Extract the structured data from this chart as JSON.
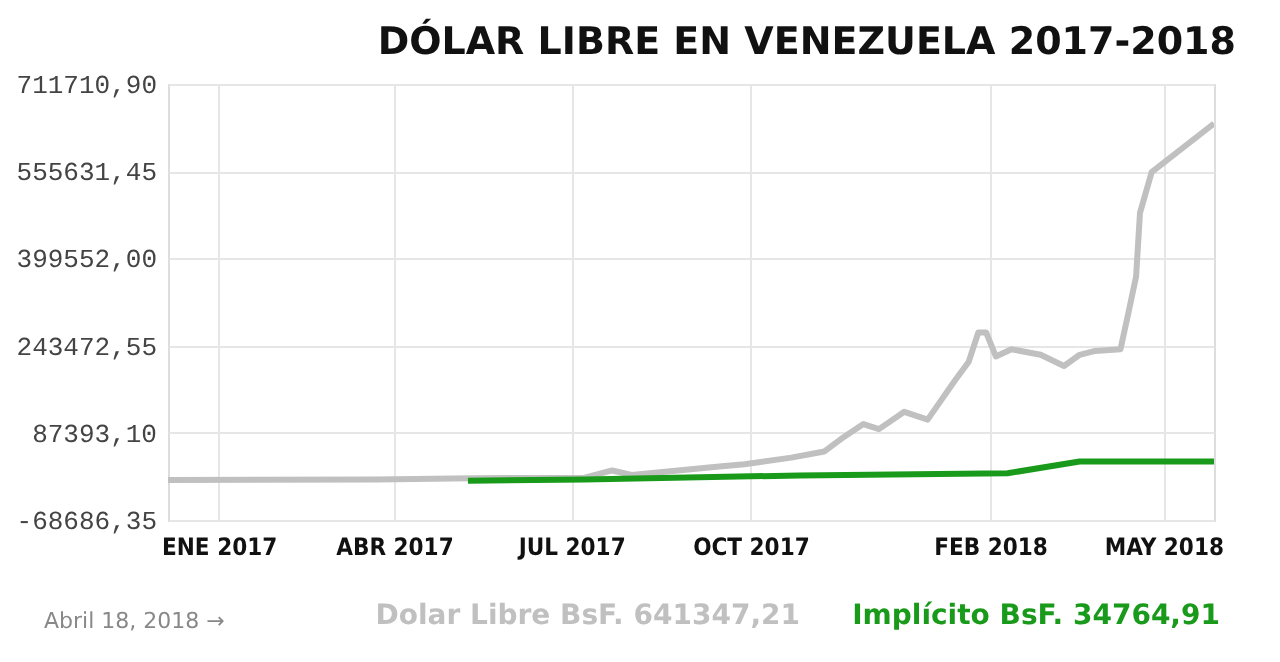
{
  "chart_data": {
    "type": "line",
    "title": "DÓLAR LIBRE EN VENEZUELA 2017-2018",
    "annotations": [
      "Abril 18, 2018 →",
      "Dolar Libre BsF. 641347,21",
      "Implícito BsF. 34764,91"
    ],
    "series": [
      {
        "color": "#c0c0c0",
        "x": [
          "2016-12-06",
          "2017-03-23",
          "2017-05-11",
          "2017-07-08",
          "2017-07-22",
          "2017-08-01",
          "2017-09-15",
          "2017-09-28",
          "2017-10-22",
          "2017-11-08",
          "2017-11-18",
          "2017-11-28",
          "2017-12-06",
          "2017-12-19",
          "2017-12-31",
          "2018-01-06",
          "2018-01-14",
          "2018-01-21",
          "2018-01-26",
          "2018-01-30",
          "2018-02-04",
          "2018-02-12",
          "2018-02-27",
          "2018-03-11",
          "2018-03-19",
          "2018-03-27",
          "2018-04-09",
          "2018-04-13",
          "2018-04-17",
          "2018-04-19",
          "2018-04-25",
          "2018-05-27"
        ],
        "values": [
          3000,
          4000,
          6000,
          7000,
          20000,
          12000,
          27000,
          31000,
          43000,
          54000,
          80000,
          103000,
          94000,
          125000,
          111000,
          141000,
          181000,
          214000,
          267000,
          267000,
          224000,
          237000,
          227000,
          207000,
          227000,
          234000,
          237000,
          301000,
          367000,
          481000,
          554000,
          641000
        ]
      },
      {
        "color": "#1a9a1a",
        "x": [
          "2017-05-09",
          "2017-07-08",
          "2017-10-26",
          "2018-02-10",
          "2018-03-19",
          "2018-05-27"
        ],
        "values": [
          1500,
          4000,
          11000,
          15000,
          36000,
          36000
        ]
      }
    ],
    "xlim": [
      "2016-12-06",
      "2018-05-27"
    ],
    "xticks": [
      {
        "value": "2017-01-01",
        "label": "ENE 2017"
      },
      {
        "value": "2017-04-01",
        "label": "ABR 2017"
      },
      {
        "value": "2017-07-01",
        "label": "JUL 2017"
      },
      {
        "value": "2017-10-01",
        "label": "OCT 2017"
      },
      {
        "value": "2018-02-01",
        "label": "FEB 2018"
      },
      {
        "value": "2018-05-01",
        "label": "MAY 2018"
      }
    ],
    "ylim": [
      -68686.35,
      711710.9
    ],
    "yticks": [
      {
        "value": -68686.35,
        "label": "-68686,35"
      },
      {
        "value": 87393.1,
        "label": "87393,10"
      },
      {
        "value": 243472.55,
        "label": "243472,55"
      },
      {
        "value": 399552.0,
        "label": "399552,00"
      },
      {
        "value": 555631.45,
        "label": "555631,45"
      },
      {
        "value": 711710.9,
        "label": "711710,90"
      }
    ],
    "grid": true,
    "line_style": "solid",
    "marker": "none"
  }
}
